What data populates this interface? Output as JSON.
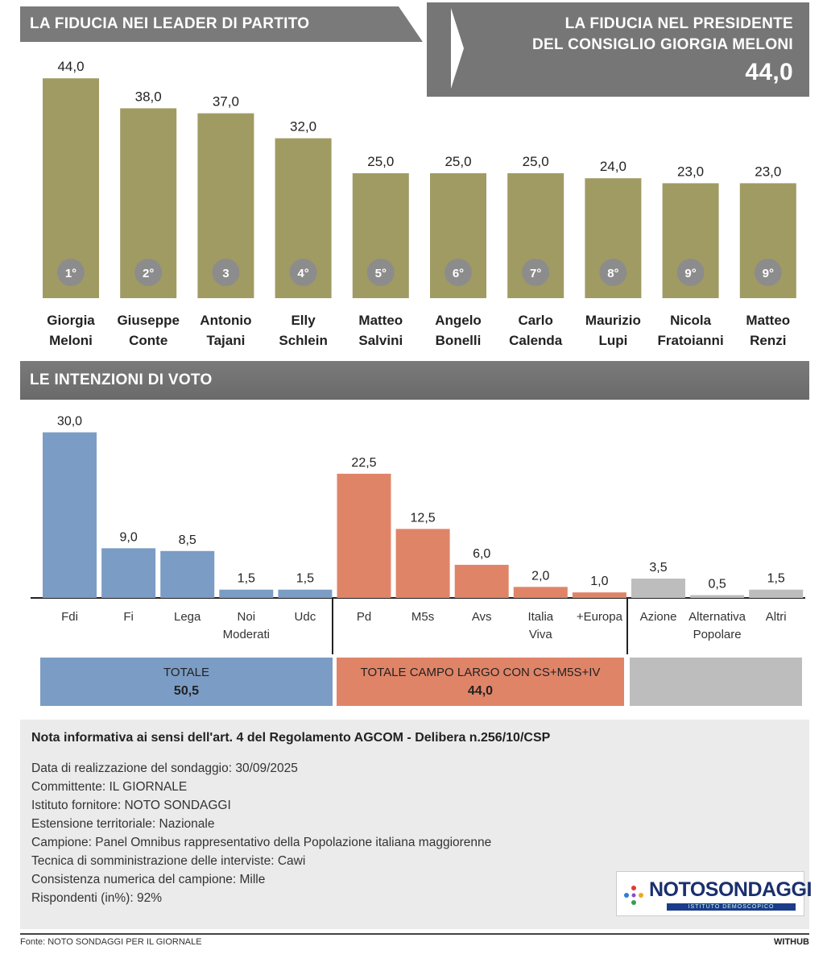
{
  "leaders_header": "LA FIDUCIA NEI LEADER DI PARTITO",
  "president": {
    "line1": "LA FIDUCIA NEL PRESIDENTE",
    "line2": "DEL CONSIGLIO GIORGIA MELONI",
    "value": "44,0"
  },
  "votes_header": "LE INTENZIONI DI VOTO",
  "chart_data": [
    {
      "type": "bar",
      "title": "LA FIDUCIA NEI LEADER DI PARTITO",
      "categories": [
        [
          "Giorgia",
          "Meloni"
        ],
        [
          "Giuseppe",
          "Conte"
        ],
        [
          "Antonio",
          "Tajani"
        ],
        [
          "Elly",
          "Schlein"
        ],
        [
          "Matteo",
          "Salvini"
        ],
        [
          "Angelo",
          "Bonelli"
        ],
        [
          "Carlo",
          "Calenda"
        ],
        [
          "Maurizio",
          "Lupi"
        ],
        [
          "Nicola",
          "Fratoianni"
        ],
        [
          "Matteo",
          "Renzi"
        ]
      ],
      "values": [
        44.0,
        38.0,
        37.0,
        32.0,
        25.0,
        25.0,
        25.0,
        24.0,
        23.0,
        23.0
      ],
      "value_labels": [
        "44,0",
        "38,0",
        "37,0",
        "32,0",
        "25,0",
        "25,0",
        "25,0",
        "24,0",
        "23,0",
        "23,0"
      ],
      "ranks": [
        "1°",
        "2°",
        "3",
        "4°",
        "5°",
        "6°",
        "7°",
        "8°",
        "9°",
        "9°"
      ],
      "color": "#a09b63"
    },
    {
      "type": "bar",
      "title": "LE INTENZIONI DI VOTO",
      "categories": [
        [
          "Fdi"
        ],
        [
          "Fi"
        ],
        [
          "Lega"
        ],
        [
          "Noi",
          "Moderati"
        ],
        [
          "Udc"
        ],
        [
          "Pd"
        ],
        [
          "M5s"
        ],
        [
          "Avs"
        ],
        [
          "Italia",
          "Viva"
        ],
        [
          "+Europa"
        ],
        [
          "Azione"
        ],
        [
          "Alternativa",
          "Popolare"
        ],
        [
          "Altri"
        ]
      ],
      "values": [
        30.0,
        9.0,
        8.5,
        1.5,
        1.5,
        22.5,
        12.5,
        6.0,
        2.0,
        1.0,
        3.5,
        0.5,
        1.5
      ],
      "value_labels": [
        "30,0",
        "9,0",
        "8,5",
        "1,5",
        "1,5",
        "22,5",
        "12,5",
        "6,0",
        "2,0",
        "1,0",
        "3,5",
        "0,5",
        "1,5"
      ],
      "groups": [
        0,
        0,
        0,
        0,
        0,
        1,
        1,
        1,
        1,
        1,
        2,
        2,
        2
      ],
      "group_colors": [
        "#7b9cc4",
        "#e08468",
        "#bdbdbd"
      ],
      "totals": [
        {
          "label": "TOTALE",
          "value": "50,5"
        },
        {
          "label": "TOTALE CAMPO LARGO CON CS+M5S+IV",
          "value": "44,0"
        },
        {
          "label": "",
          "value": ""
        }
      ]
    }
  ],
  "note": {
    "title": "Nota informativa ai sensi dell'art. 4 del Regolamento AGCOM - Delibera n.256/10/CSP",
    "lines": [
      "Data di realizzazione del sondaggio: 30/09/2025",
      "Committente: IL GIORNALE",
      "Istituto fornitore: NOTO SONDAGGI",
      "Estensione territoriale: Nazionale",
      "Campione: Panel Omnibus rappresentativo della Popolazione italiana maggiorenne",
      "Tecnica di somministrazione delle interviste: Cawi",
      "Consistenza numerica del campione: Mille",
      "Rispondenti (in%): 92%"
    ]
  },
  "logo": {
    "name": "NOTOSONDAGGI",
    "subtitle": "ISTITUTO DEMOSCOPICO"
  },
  "source": "Fonte: NOTO SONDAGGI PER IL GIORNALE",
  "brand": "WITHUB"
}
